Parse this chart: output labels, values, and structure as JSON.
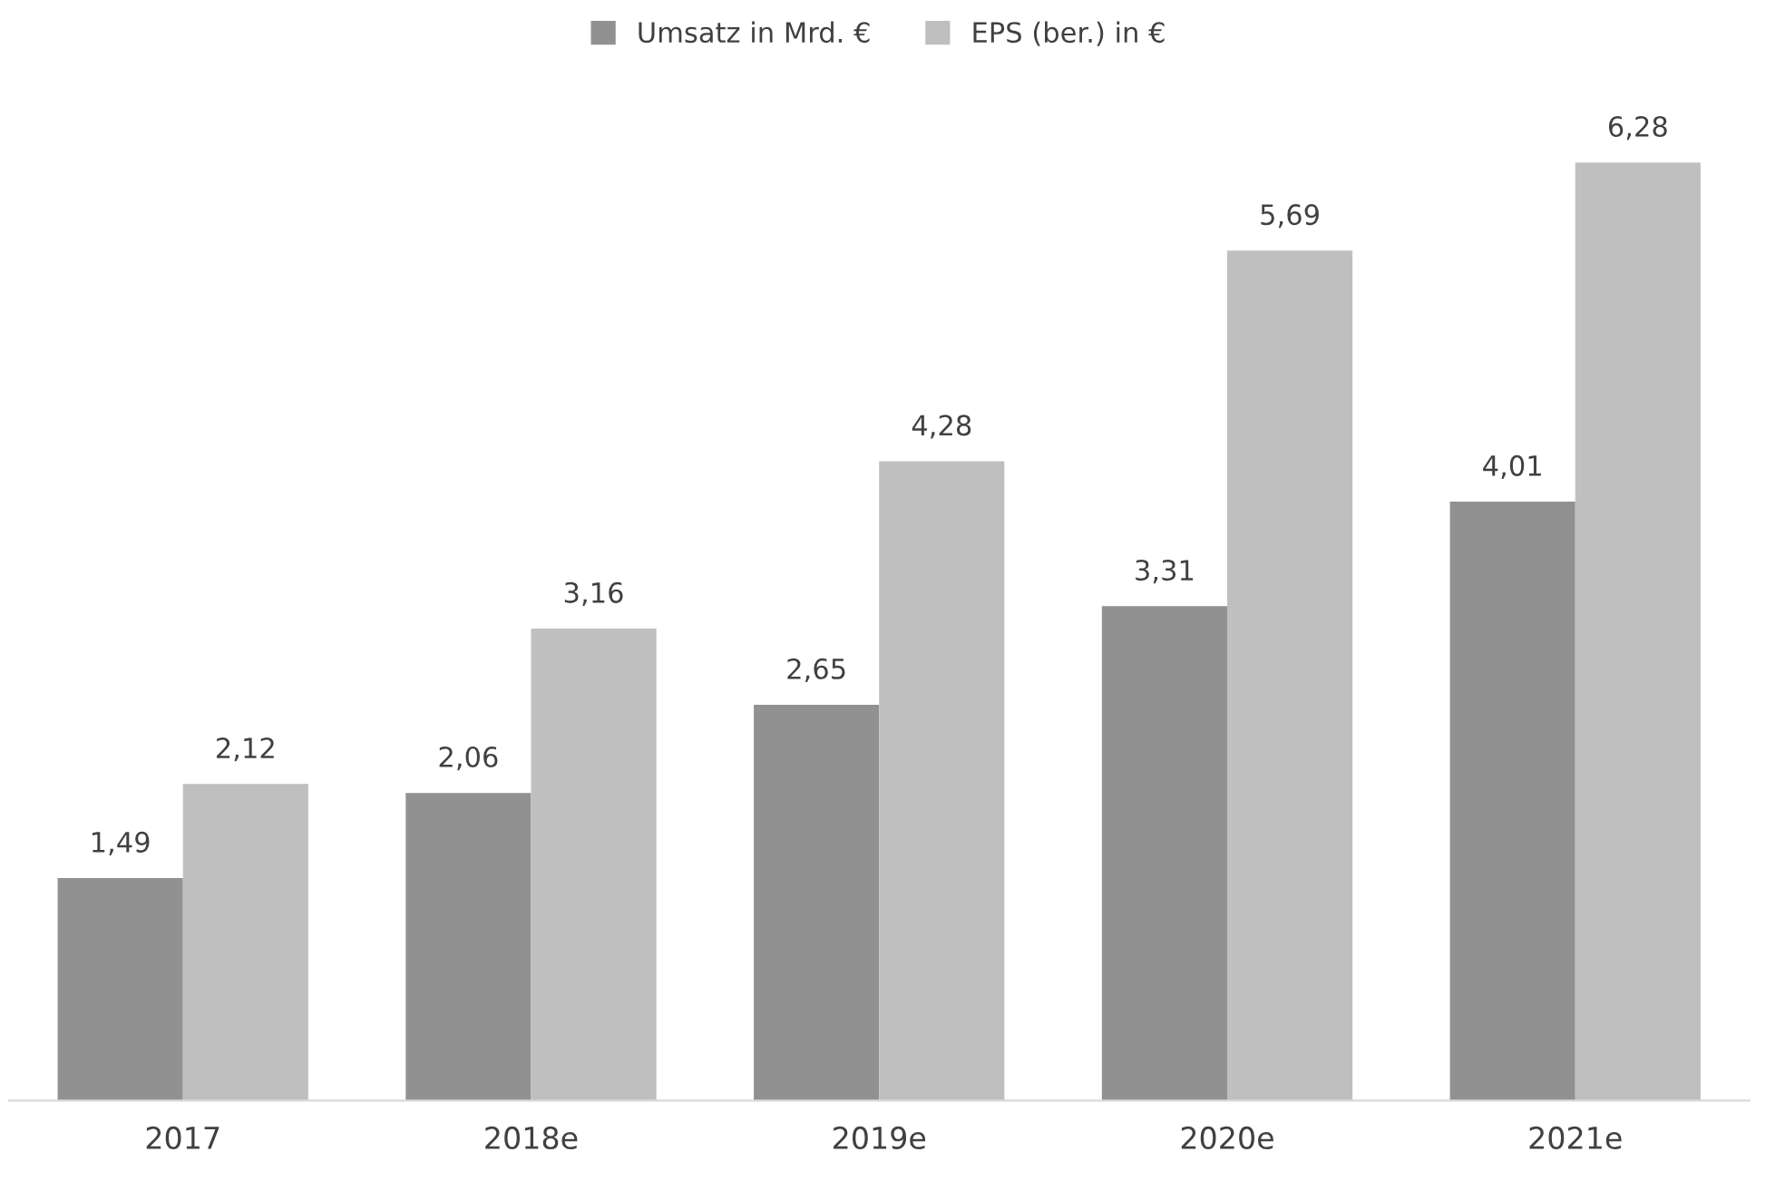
{
  "chart_data": {
    "type": "bar",
    "categories": [
      "2017",
      "2018e",
      "2019e",
      "2020e",
      "2021e"
    ],
    "series": [
      {
        "name": "Umsatz in Mrd. €",
        "color": "#919191",
        "values": [
          1.49,
          2.06,
          2.65,
          3.31,
          4.01
        ],
        "value_labels": [
          "1,49",
          "2,06",
          "2,65",
          "3,31",
          "4,01"
        ]
      },
      {
        "name": "EPS (ber.) in €",
        "color": "#bfbfbf",
        "values": [
          2.12,
          3.16,
          4.28,
          5.69,
          6.28
        ],
        "value_labels": [
          "2,12",
          "3,16",
          "4,28",
          "5,69",
          "6,28"
        ]
      }
    ],
    "legend": "top"
  }
}
